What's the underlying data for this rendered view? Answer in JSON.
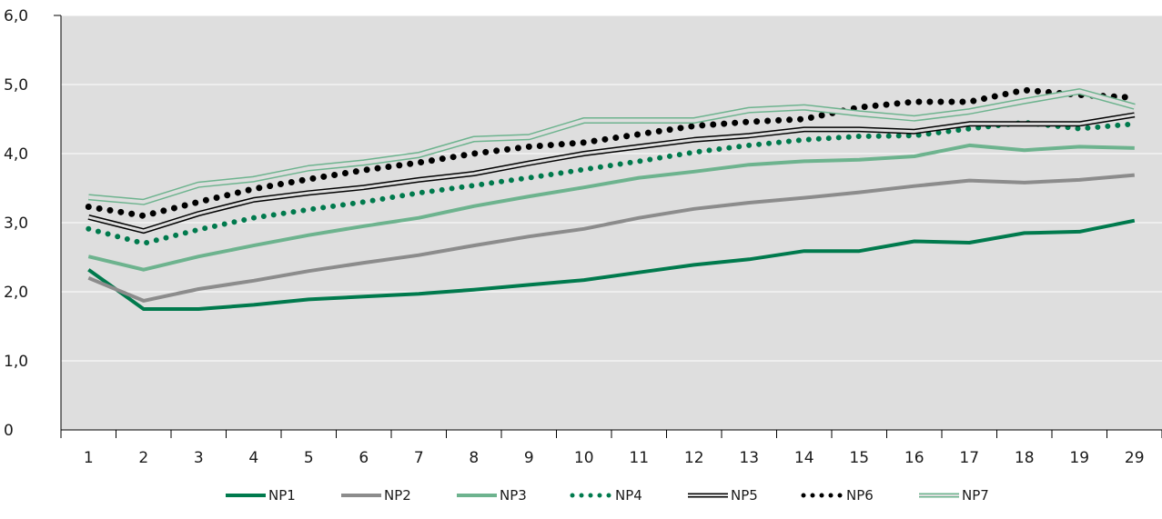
{
  "chart_data": {
    "type": "line",
    "title": "",
    "xlabel": "",
    "ylabel": "",
    "categories": [
      "1",
      "2",
      "3",
      "4",
      "5",
      "6",
      "7",
      "8",
      "9",
      "10",
      "11",
      "12",
      "13",
      "14",
      "15",
      "16",
      "17",
      "18",
      "19",
      "29"
    ],
    "ylim": [
      0,
      6
    ],
    "yticks": [
      "0",
      "1,0",
      "2,0",
      "3,0",
      "4,0",
      "5,0",
      "6,0"
    ],
    "grid": true,
    "legend_position": "bottom",
    "colors": {
      "plot_bg": "#dedede",
      "dark_green": "#007a4d",
      "grey": "#8c8c8c",
      "light_green": "#6db38e",
      "black": "#000000"
    },
    "series": [
      {
        "name": "NP1",
        "style": "solid-dark-green",
        "values": [
          2.32,
          1.75,
          1.75,
          1.81,
          1.89,
          1.93,
          1.97,
          2.03,
          2.1,
          2.17,
          2.28,
          2.39,
          2.47,
          2.59,
          2.59,
          2.73,
          2.71,
          2.85,
          2.87,
          3.03
        ]
      },
      {
        "name": "NP2",
        "style": "solid-grey",
        "values": [
          2.2,
          1.87,
          2.04,
          2.16,
          2.3,
          2.42,
          2.53,
          2.67,
          2.8,
          2.91,
          3.07,
          3.2,
          3.29,
          3.36,
          3.44,
          3.53,
          3.61,
          3.58,
          3.62,
          3.69
        ]
      },
      {
        "name": "NP3",
        "style": "solid-light-green",
        "values": [
          2.51,
          2.32,
          2.51,
          2.67,
          2.82,
          2.95,
          3.07,
          3.24,
          3.38,
          3.51,
          3.65,
          3.74,
          3.84,
          3.89,
          3.91,
          3.96,
          4.12,
          4.05,
          4.1,
          4.08
        ]
      },
      {
        "name": "NP4",
        "style": "dotted-dark-green",
        "values": [
          2.91,
          2.7,
          2.9,
          3.07,
          3.19,
          3.3,
          3.43,
          3.54,
          3.65,
          3.77,
          3.89,
          4.02,
          4.12,
          4.2,
          4.25,
          4.26,
          4.36,
          4.45,
          4.36,
          4.43
        ]
      },
      {
        "name": "NP5",
        "style": "double-black",
        "values": [
          3.08,
          2.88,
          3.13,
          3.33,
          3.43,
          3.51,
          3.62,
          3.71,
          3.86,
          4.0,
          4.1,
          4.2,
          4.26,
          4.35,
          4.35,
          4.32,
          4.43,
          4.43,
          4.43,
          4.56
        ]
      },
      {
        "name": "NP6",
        "style": "dotted-black",
        "values": [
          3.23,
          3.1,
          3.3,
          3.49,
          3.63,
          3.76,
          3.87,
          4.0,
          4.1,
          4.16,
          4.28,
          4.4,
          4.46,
          4.5,
          4.67,
          4.75,
          4.75,
          4.92,
          4.85,
          4.81
        ]
      },
      {
        "name": "NP7",
        "style": "double-light-green",
        "values": [
          3.37,
          3.3,
          3.55,
          3.63,
          3.79,
          3.87,
          3.98,
          4.21,
          4.24,
          4.48,
          4.48,
          4.48,
          4.63,
          4.67,
          4.58,
          4.51,
          4.61,
          4.76,
          4.9,
          4.68
        ]
      }
    ]
  }
}
